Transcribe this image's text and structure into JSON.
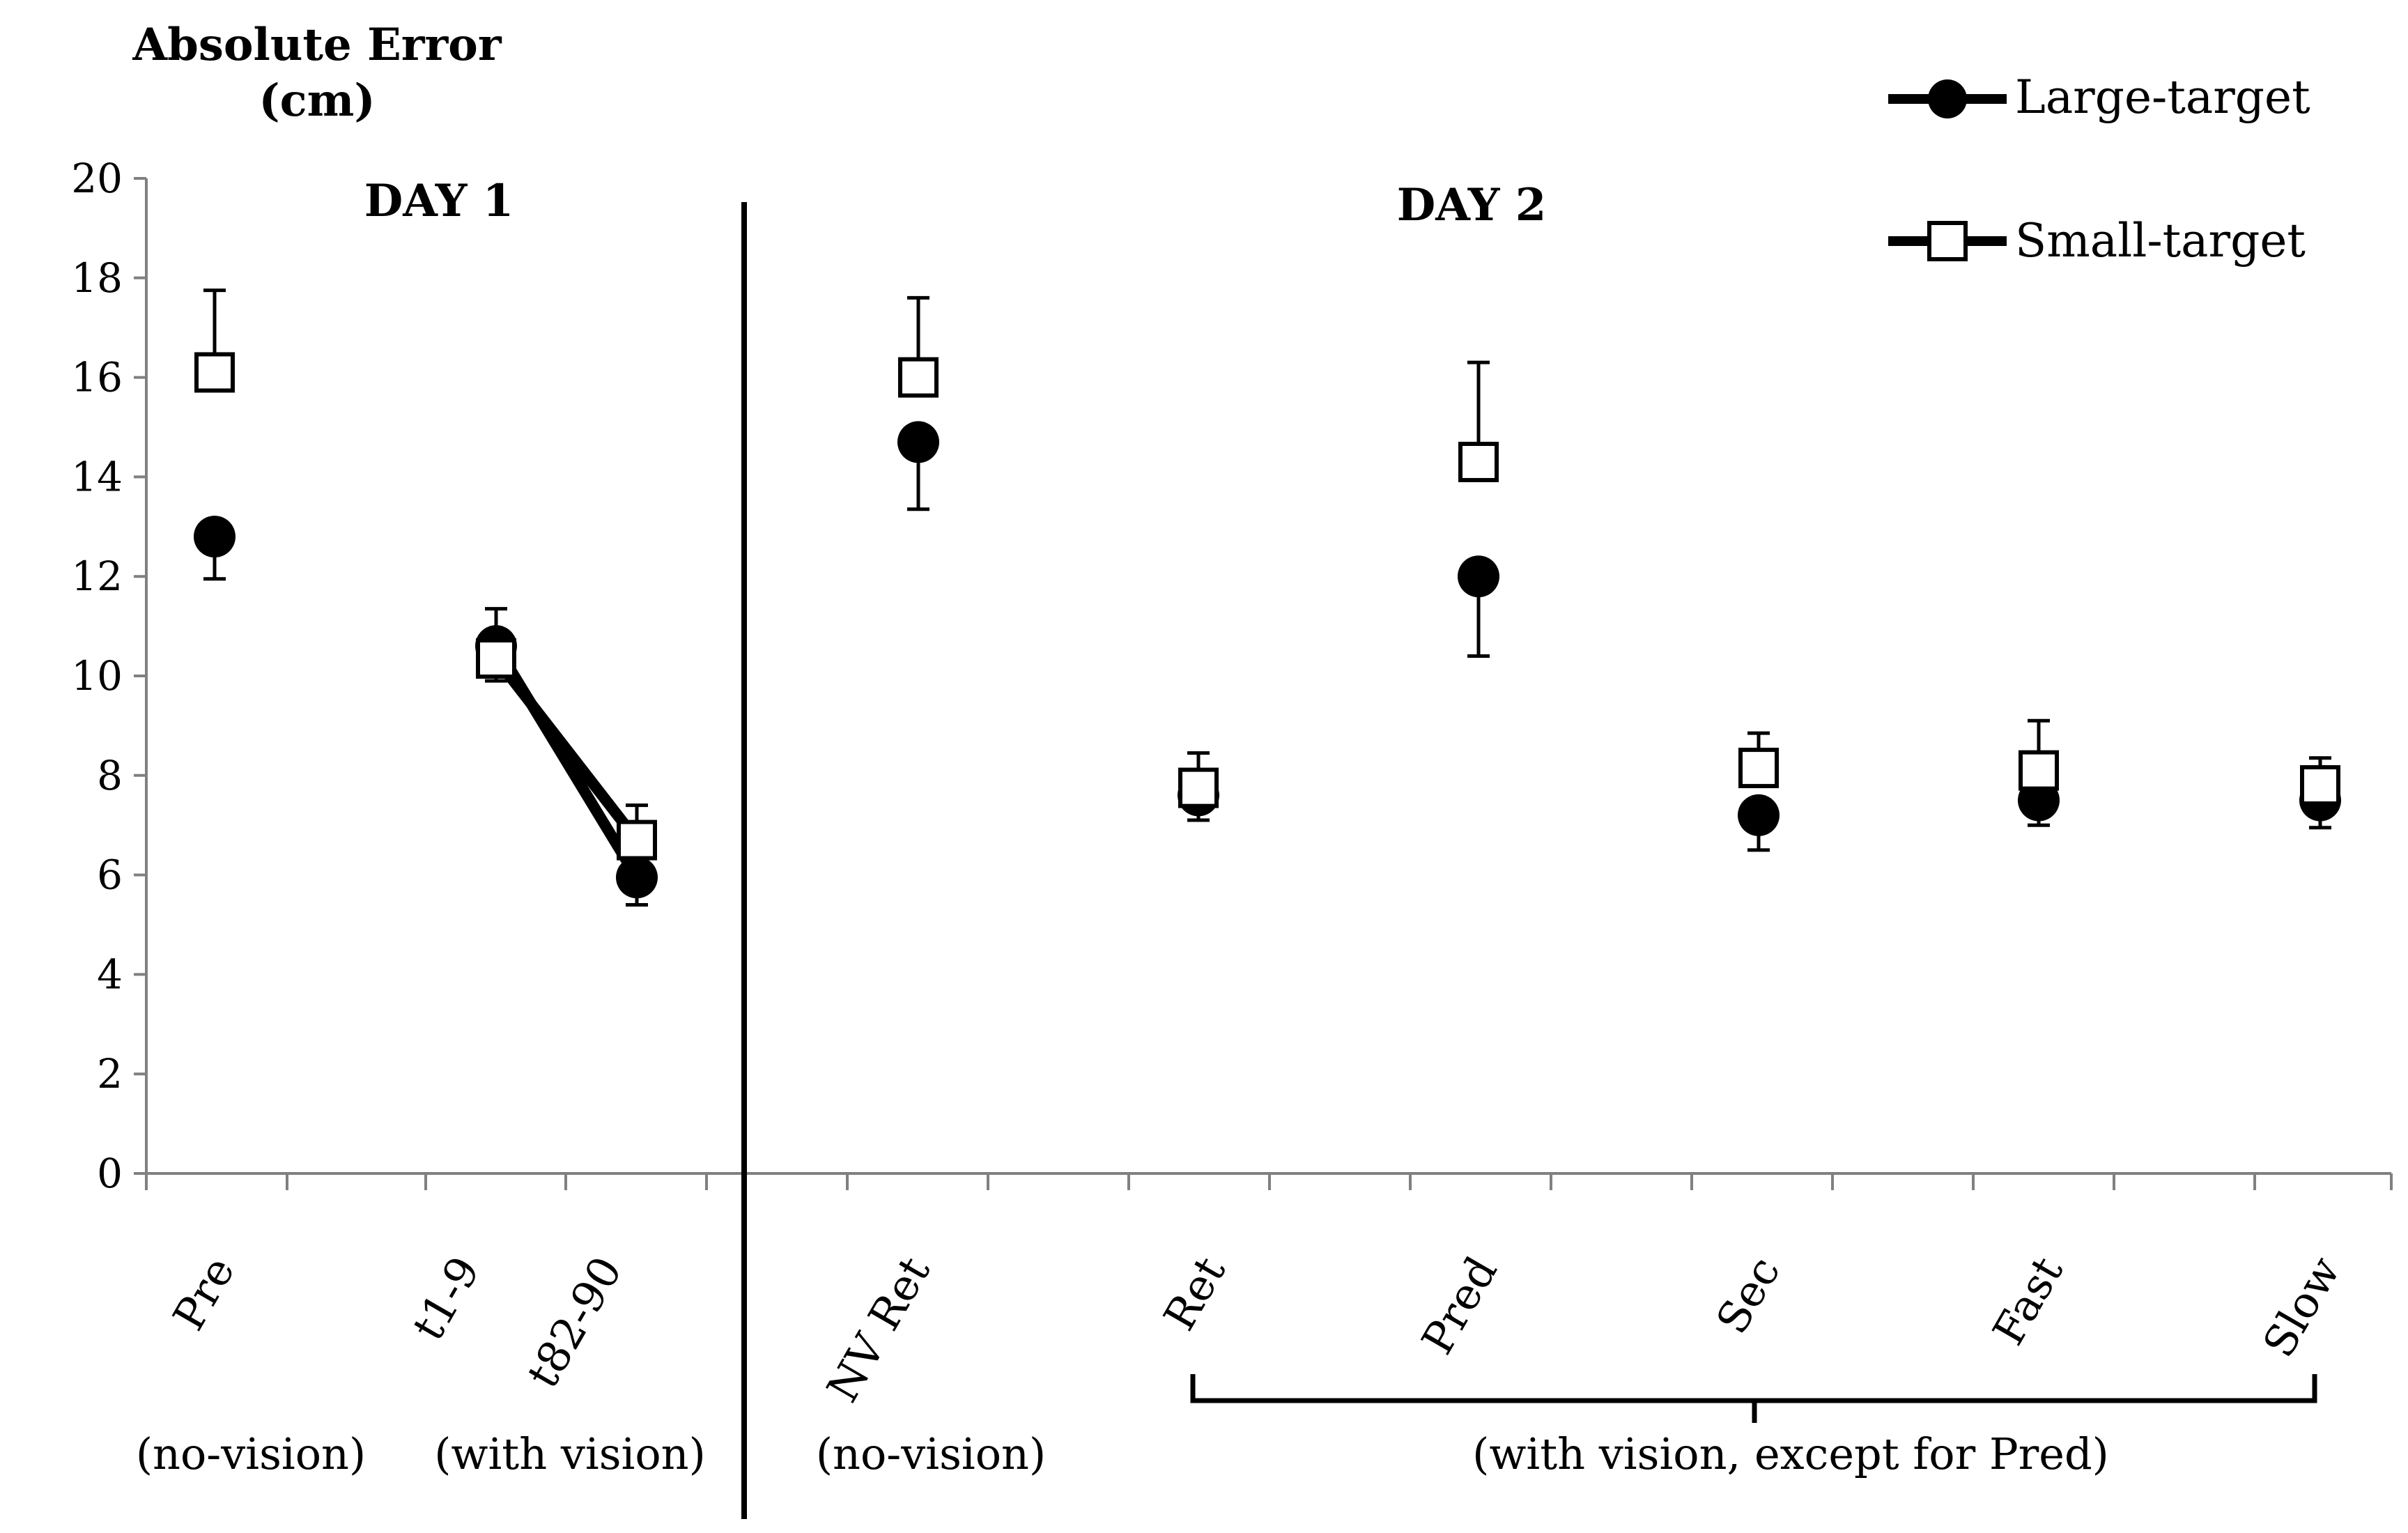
{
  "chart_data": {
    "type": "scatter",
    "ylabel": "Absolute Error\n(cm)",
    "ylim": [
      0,
      20
    ],
    "yticks": [
      0,
      2,
      4,
      6,
      8,
      10,
      12,
      14,
      16,
      18,
      20
    ],
    "categories": [
      "Pre",
      "t1-9",
      "t82-90",
      "NV Ret",
      "Ret",
      "Pred",
      "Sec",
      "Fast",
      "Slow"
    ],
    "day_labels": [
      "DAY 1",
      "DAY 2"
    ],
    "group_labels": [
      "(no-vision)",
      "(with vision)",
      "(no-vision)",
      "(with vision, except for Pred)"
    ],
    "series": [
      {
        "name": "Large-target",
        "marker": "circle",
        "values": [
          12.8,
          10.6,
          5.95,
          14.7,
          7.6,
          12.0,
          7.2,
          7.5,
          7.5
        ],
        "error_lower": [
          0.85,
          0.7,
          0.55,
          1.35,
          0.5,
          1.6,
          0.7,
          0.5,
          0.55
        ]
      },
      {
        "name": "Small-target",
        "marker": "square",
        "values": [
          16.1,
          10.35,
          6.7,
          16.0,
          7.75,
          14.3,
          8.15,
          8.1,
          7.8
        ],
        "error_upper": [
          1.65,
          1.0,
          0.7,
          1.6,
          0.7,
          2.0,
          0.7,
          1.0,
          0.55
        ]
      }
    ],
    "connected_pairs": [
      [
        1,
        2
      ]
    ],
    "legend_position": "top-right"
  }
}
